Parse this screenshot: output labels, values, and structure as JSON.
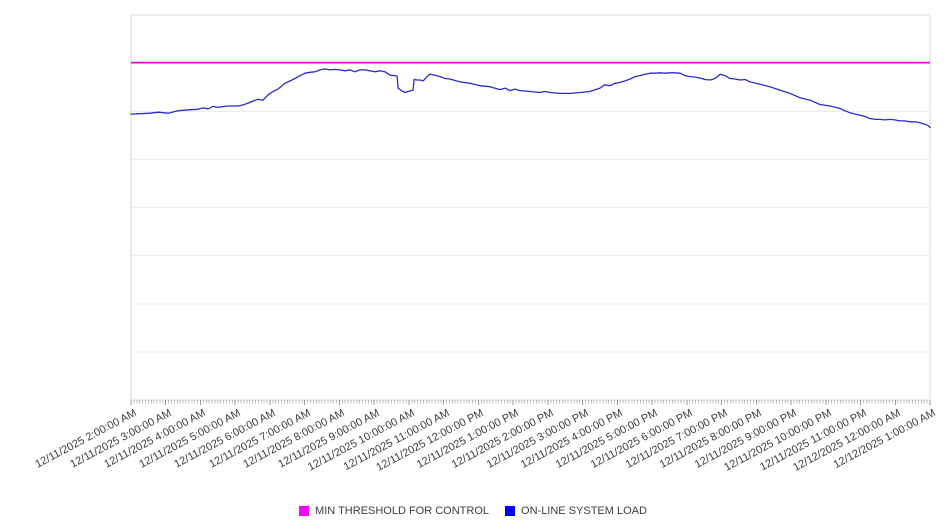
{
  "page": {
    "background": "#ffffff"
  },
  "chart_data": {
    "type": "line",
    "title": "",
    "grid": "horizontal",
    "legend_position": "bottom-center",
    "plot": {
      "gridline_color": "#ececec",
      "spine_color": "#d8d8d8",
      "major_tick_color": "#999999",
      "minor_tick_color": "#bfbfbf"
    },
    "x_axis": {
      "labels": [
        "12/11/2025 2:00:00 AM",
        "12/11/2025 3:00:00 AM",
        "12/11/2025 4:00:00 AM",
        "12/11/2025 5:00:00 AM",
        "12/11/2025 6:00:00 AM",
        "12/11/2025 7:00:00 AM",
        "12/11/2025 8:00:00 AM",
        "12/11/2025 9:00:00 AM",
        "12/11/2025 10:00:00 AM",
        "12/11/2025 11:00:00 AM",
        "12/11/2025 12:00:00 PM",
        "12/11/2025 1:00:00 PM",
        "12/11/2025 2:00:00 PM",
        "12/11/2025 3:00:00 PM",
        "12/11/2025 4:00:00 PM",
        "12/11/2025 5:00:00 PM",
        "12/11/2025 6:00:00 PM",
        "12/11/2025 7:00:00 PM",
        "12/11/2025 8:00:00 PM",
        "12/11/2025 9:00:00 PM",
        "12/11/2025 10:00:00 PM",
        "12/11/2025 11:00:00 PM",
        "12/12/2025 12:00:00 AM",
        "12/12/2025 1:00:00 AM"
      ],
      "label_rotation_deg": -28,
      "minor_ticks_per_interval": 12
    },
    "y_axis": {
      "tick_labels_visible": false,
      "divisions": 8,
      "unit_note": "no numeric y labels are rendered; series values are expressed in gridline units (0 = x-axis, 8 = plot top)"
    },
    "series": [
      {
        "name": "MIN THRESHOLD FOR CONTROL",
        "type": "threshold",
        "color": "#e800e8",
        "legend_swatch_color": "#ff00ff",
        "value": 7.01
      },
      {
        "name": "ON-LINE SYSTEM LOAD",
        "type": "line",
        "color": "#2b2bd0",
        "legend_swatch_color": "#0000ff",
        "x_unit": "hours since 12/11/2025 2:00:00 AM",
        "points": [
          [
            0,
            5.94
          ],
          [
            0.26,
            5.95
          ],
          [
            0.55,
            5.96
          ],
          [
            0.78,
            5.98
          ],
          [
            1.07,
            5.96
          ],
          [
            1.35,
            6.01
          ],
          [
            1.64,
            6.03
          ],
          [
            1.93,
            6.04
          ],
          [
            2.07,
            6.07
          ],
          [
            2.22,
            6.05
          ],
          [
            2.36,
            6.1
          ],
          [
            2.5,
            6.08
          ],
          [
            2.79,
            6.11
          ],
          [
            3.08,
            6.11
          ],
          [
            3.22,
            6.13
          ],
          [
            3.37,
            6.17
          ],
          [
            3.51,
            6.21
          ],
          [
            3.66,
            6.25
          ],
          [
            3.8,
            6.23
          ],
          [
            3.94,
            6.34
          ],
          [
            4.09,
            6.41
          ],
          [
            4.23,
            6.46
          ],
          [
            4.43,
            6.58
          ],
          [
            4.58,
            6.63
          ],
          [
            4.72,
            6.68
          ],
          [
            4.87,
            6.74
          ],
          [
            5.01,
            6.79
          ],
          [
            5.15,
            6.81
          ],
          [
            5.3,
            6.82
          ],
          [
            5.44,
            6.86
          ],
          [
            5.58,
            6.88
          ],
          [
            5.73,
            6.86
          ],
          [
            5.87,
            6.87
          ],
          [
            6.02,
            6.86
          ],
          [
            6.16,
            6.84
          ],
          [
            6.3,
            6.86
          ],
          [
            6.45,
            6.82
          ],
          [
            6.59,
            6.86
          ],
          [
            6.74,
            6.86
          ],
          [
            6.88,
            6.84
          ],
          [
            7.02,
            6.82
          ],
          [
            7.17,
            6.84
          ],
          [
            7.31,
            6.82
          ],
          [
            7.46,
            6.75
          ],
          [
            7.6,
            6.74
          ],
          [
            7.66,
            6.73
          ],
          [
            7.69,
            6.48
          ],
          [
            7.8,
            6.42
          ],
          [
            7.89,
            6.39
          ],
          [
            7.97,
            6.41
          ],
          [
            8.06,
            6.43
          ],
          [
            8.12,
            6.44
          ],
          [
            8.15,
            6.66
          ],
          [
            8.23,
            6.65
          ],
          [
            8.32,
            6.65
          ],
          [
            8.41,
            6.63
          ],
          [
            8.52,
            6.72
          ],
          [
            8.61,
            6.77
          ],
          [
            8.75,
            6.75
          ],
          [
            8.9,
            6.72
          ],
          [
            9.04,
            6.68
          ],
          [
            9.18,
            6.67
          ],
          [
            9.47,
            6.61
          ],
          [
            9.76,
            6.58
          ],
          [
            10.05,
            6.53
          ],
          [
            10.33,
            6.51
          ],
          [
            10.62,
            6.45
          ],
          [
            10.77,
            6.48
          ],
          [
            10.91,
            6.43
          ],
          [
            11.05,
            6.46
          ],
          [
            11.2,
            6.43
          ],
          [
            11.49,
            6.41
          ],
          [
            11.77,
            6.39
          ],
          [
            11.92,
            6.41
          ],
          [
            12.06,
            6.39
          ],
          [
            12.35,
            6.37
          ],
          [
            12.64,
            6.37
          ],
          [
            12.93,
            6.39
          ],
          [
            13.21,
            6.41
          ],
          [
            13.5,
            6.48
          ],
          [
            13.64,
            6.55
          ],
          [
            13.79,
            6.53
          ],
          [
            13.93,
            6.58
          ],
          [
            14.08,
            6.6
          ],
          [
            14.22,
            6.63
          ],
          [
            14.37,
            6.67
          ],
          [
            14.51,
            6.72
          ],
          [
            14.65,
            6.74
          ],
          [
            14.8,
            6.77
          ],
          [
            14.94,
            6.79
          ],
          [
            15.09,
            6.79
          ],
          [
            15.23,
            6.8
          ],
          [
            15.37,
            6.79
          ],
          [
            15.52,
            6.8
          ],
          [
            15.66,
            6.8
          ],
          [
            15.8,
            6.79
          ],
          [
            15.95,
            6.74
          ],
          [
            16.09,
            6.72
          ],
          [
            16.24,
            6.71
          ],
          [
            16.38,
            6.69
          ],
          [
            16.52,
            6.66
          ],
          [
            16.67,
            6.65
          ],
          [
            16.81,
            6.68
          ],
          [
            16.96,
            6.77
          ],
          [
            17.1,
            6.74
          ],
          [
            17.24,
            6.68
          ],
          [
            17.39,
            6.67
          ],
          [
            17.53,
            6.65
          ],
          [
            17.68,
            6.66
          ],
          [
            17.82,
            6.61
          ],
          [
            18.11,
            6.56
          ],
          [
            18.39,
            6.51
          ],
          [
            18.68,
            6.44
          ],
          [
            18.97,
            6.37
          ],
          [
            19.26,
            6.28
          ],
          [
            19.55,
            6.23
          ],
          [
            19.83,
            6.14
          ],
          [
            20.12,
            6.11
          ],
          [
            20.41,
            6.06
          ],
          [
            20.55,
            6.01
          ],
          [
            20.7,
            5.97
          ],
          [
            20.84,
            5.94
          ],
          [
            20.98,
            5.92
          ],
          [
            21.13,
            5.89
          ],
          [
            21.27,
            5.85
          ],
          [
            21.42,
            5.83
          ],
          [
            21.56,
            5.83
          ],
          [
            21.7,
            5.82
          ],
          [
            21.85,
            5.83
          ],
          [
            21.99,
            5.82
          ],
          [
            22.13,
            5.8
          ],
          [
            22.28,
            5.8
          ],
          [
            22.42,
            5.78
          ],
          [
            22.57,
            5.78
          ],
          [
            22.71,
            5.76
          ],
          [
            22.85,
            5.73
          ],
          [
            22.95,
            5.7
          ],
          [
            23.0,
            5.66
          ]
        ]
      }
    ]
  }
}
